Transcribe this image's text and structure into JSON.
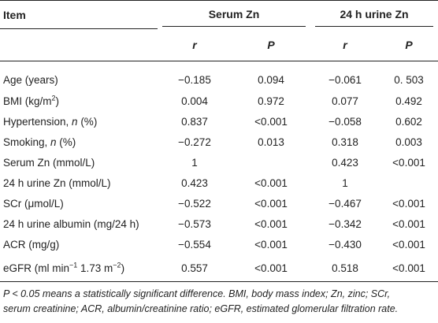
{
  "header": {
    "item": "Item",
    "group1": "Serum Zn",
    "group2": "24 h urine Zn",
    "sub": [
      "r",
      "P",
      "r",
      "P"
    ]
  },
  "rows": [
    {
      "label": "Age (years)",
      "v": [
        "−0.185",
        "0.094",
        "−0.061",
        "0. 503"
      ]
    },
    {
      "label": "BMI (kg/m",
      "sup": "2",
      "label_after": ")",
      "v": [
        "0.004",
        "0.972",
        "0.077",
        "0.492"
      ]
    },
    {
      "label": "Hypertension, ",
      "italic": "n",
      "label_after": " (%)",
      "v": [
        "0.837",
        "<0.001",
        "−0.058",
        "0.602"
      ]
    },
    {
      "label": "Smoking, ",
      "italic": "n",
      "label_after": " (%)",
      "v": [
        "−0.272",
        "0.013",
        "0.318",
        "0.003"
      ]
    },
    {
      "label": "Serum Zn (mmol/L)",
      "v": [
        "1",
        "",
        "0.423",
        "<0.001"
      ]
    },
    {
      "label": "24 h urine Zn (mmol/L)",
      "v": [
        "0.423",
        "<0.001",
        "1",
        ""
      ]
    },
    {
      "label": "SCr (μmol/L)",
      "v": [
        "−0.522",
        "<0.001",
        "−0.467",
        "<0.001"
      ]
    },
    {
      "label": "24 h urine albumin (mg/24 h)",
      "v": [
        "−0.573",
        "<0.001",
        "−0.342",
        "<0.001"
      ]
    },
    {
      "label": "ACR (mg/g)",
      "v": [
        "−0.554",
        "<0.001",
        "−0.430",
        "<0.001"
      ]
    },
    {
      "label": "eGFR (ml min",
      "sup": "−1",
      "label_mid": " 1.73 m",
      "sup2": "−2",
      "label_after": ")",
      "v": [
        "0.557",
        "<0.001",
        "0.518",
        "<0.001"
      ]
    }
  ],
  "footnote": {
    "line1": "P < 0.05 means a statistically significant difference. BMI, body mass index; Zn, zinc; SCr,",
    "line2": "serum creatinine; ACR, albumin/creatinine ratio; eGFR, estimated glomerular filtration rate."
  }
}
